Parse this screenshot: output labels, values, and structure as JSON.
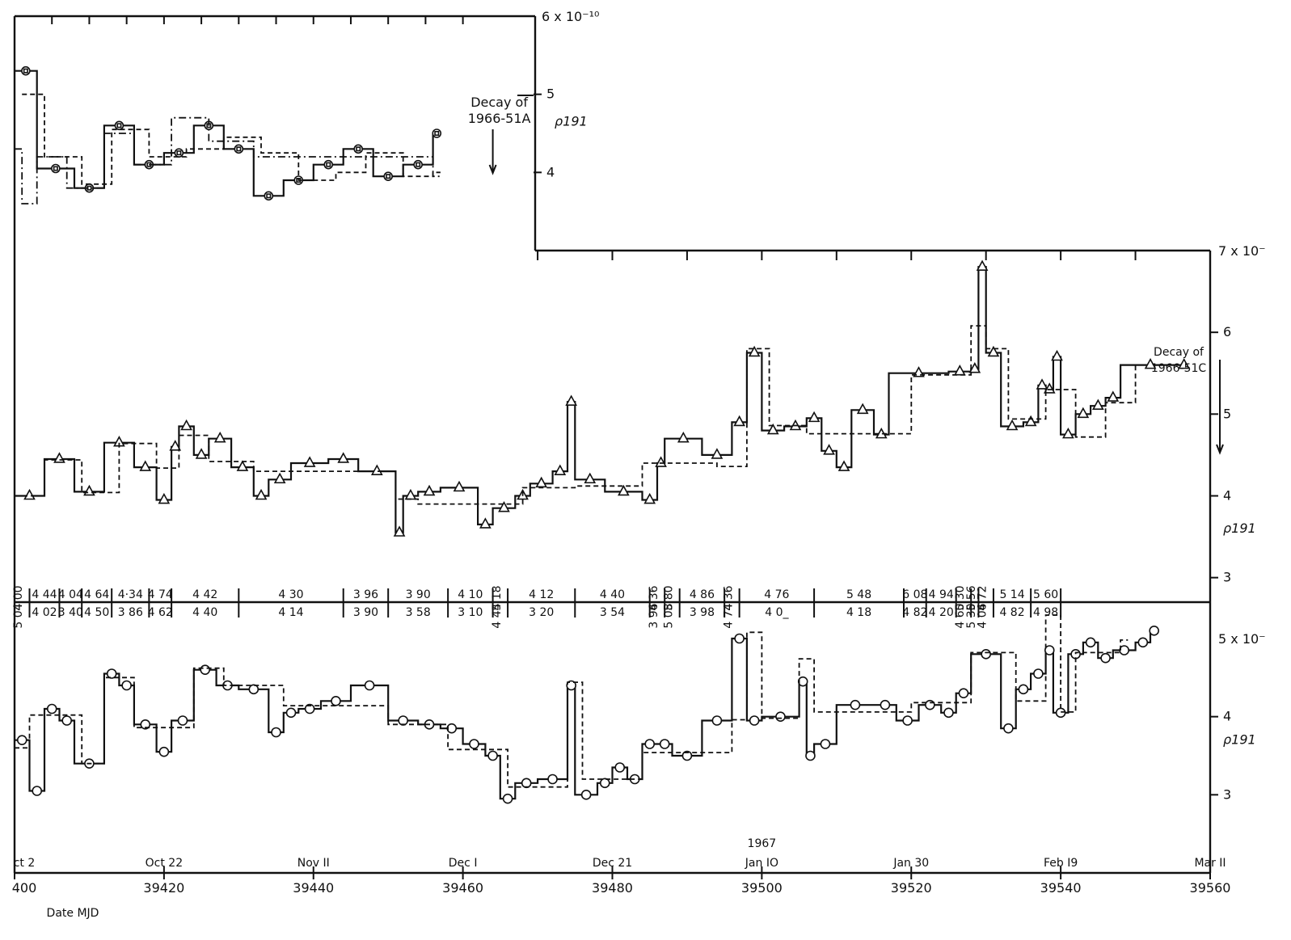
{
  "chart_data": [
    {
      "type": "line",
      "panel": "top",
      "axis_max_label": "6 x 10⁻¹⁰",
      "ylabel": "ρ191",
      "ylim": [
        3.0,
        6.0
      ],
      "yticks": [
        "5",
        "4"
      ],
      "yticks_values": [
        5,
        4
      ],
      "annotation": [
        "Decay of",
        "1966-51A"
      ],
      "annotation_x": 39464,
      "series": [
        {
          "style": "solid",
          "marker": "square",
          "x": [
            39400,
            39403,
            39408,
            39412,
            39416,
            39420,
            39424,
            39428,
            39432,
            39436,
            39440,
            39444,
            39448,
            39452,
            39456
          ],
          "values": [
            5.3,
            4.05,
            3.8,
            4.6,
            4.1,
            4.25,
            4.6,
            4.3,
            3.7,
            3.9,
            4.1,
            4.3,
            3.95,
            4.1,
            4.5
          ]
        },
        {
          "style": "dashed",
          "x": [
            39401,
            39404,
            39409,
            39413,
            39418,
            39423,
            39428,
            39433,
            39438,
            39443,
            39447,
            39452,
            39456
          ],
          "values": [
            5.0,
            4.2,
            3.85,
            4.55,
            4.2,
            4.3,
            4.45,
            4.25,
            3.9,
            4.0,
            4.25,
            3.95,
            4.0
          ]
        },
        {
          "style": "dash-dot",
          "x": [
            39400,
            39401,
            39403,
            39407,
            39412,
            39416,
            39421,
            39426,
            39432,
            39448,
            39456
          ],
          "values": [
            4.3,
            3.6,
            4.2,
            3.8,
            4.5,
            4.1,
            4.7,
            4.4,
            4.2,
            4.2,
            3.95
          ]
        }
      ]
    },
    {
      "type": "line",
      "panel": "middle",
      "axis_max_label": "7 x 10⁻",
      "ylabel": "ρ191",
      "ylim": [
        2.7,
        7.0
      ],
      "yticks": [
        "6",
        "5",
        "4",
        "3"
      ],
      "yticks_values": [
        6,
        5,
        4,
        3
      ],
      "annotation": [
        "Decay of",
        "1966-51C"
      ],
      "series": [
        {
          "style": "solid",
          "marker": "triangle",
          "x": [
            39400,
            39404,
            39408,
            39412,
            39416,
            39419,
            39421,
            39422,
            39424,
            39426,
            39429,
            39432,
            39434,
            39437,
            39442,
            39446,
            39451,
            39452,
            39454,
            39457,
            39462,
            39464,
            39467,
            39469,
            39472,
            39474,
            39475,
            39479,
            39484,
            39486,
            39487,
            39492,
            39496,
            39498,
            39500,
            39503,
            39506,
            39508,
            39510,
            39512,
            39515,
            39517,
            39525,
            39528,
            39529,
            39530,
            39532,
            39535,
            39537,
            39538,
            39539,
            39540,
            39542,
            39544,
            39546,
            39548,
            39556
          ],
          "values": [
            4.0,
            4.45,
            4.05,
            4.65,
            4.35,
            3.95,
            4.6,
            4.85,
            4.5,
            4.7,
            4.35,
            4.0,
            4.2,
            4.4,
            4.45,
            4.3,
            3.55,
            4.0,
            4.05,
            4.1,
            3.65,
            3.85,
            4.0,
            4.15,
            4.3,
            5.15,
            4.2,
            4.05,
            3.95,
            4.4,
            4.7,
            4.5,
            4.9,
            5.75,
            4.8,
            4.85,
            4.95,
            4.55,
            4.35,
            5.05,
            4.75,
            5.5,
            5.52,
            5.55,
            6.8,
            5.75,
            4.85,
            4.9,
            5.35,
            5.3,
            5.7,
            4.75,
            5.0,
            5.1,
            5.2,
            5.6,
            5.6
          ]
        },
        {
          "style": "dashed",
          "x": [
            39400,
            39404,
            39409,
            39414,
            39419,
            39422,
            39426,
            39432,
            39436,
            39441,
            39446,
            39451,
            39454,
            39458,
            39464,
            39468,
            39472,
            39475,
            39480,
            39484,
            39488,
            39494,
            39498,
            39501,
            39506,
            39510,
            39515,
            39520,
            39526,
            39528,
            39530,
            39533,
            39538,
            39542,
            39546,
            39550
          ],
          "values": [
            4.0,
            4.44,
            4.04,
            4.64,
            4.34,
            4.74,
            4.42,
            4.3,
            4.3,
            4.3,
            4.3,
            3.96,
            3.9,
            3.9,
            3.9,
            4.1,
            4.1,
            4.12,
            4.12,
            4.4,
            4.4,
            4.36,
            5.8,
            4.86,
            4.76,
            4.76,
            4.76,
            5.48,
            5.48,
            6.08,
            5.8,
            4.94,
            5.3,
            4.72,
            5.14,
            5.6
          ]
        }
      ]
    },
    {
      "type": "line",
      "panel": "bottom",
      "axis_max_label": "5 x 10⁻",
      "ylabel": "ρ191",
      "ylim": [
        2.0,
        5.0
      ],
      "yticks": [
        "4",
        "3"
      ],
      "yticks_values": [
        4,
        3
      ],
      "series": [
        {
          "style": "solid",
          "marker": "circle",
          "x": [
            39400,
            39402,
            39404,
            39406,
            39408,
            39412,
            39414,
            39416,
            39419,
            39421,
            39424,
            39427,
            39430,
            39434,
            39436,
            39438,
            39441,
            39445,
            39450,
            39454,
            39457,
            39460,
            39463,
            39465,
            39467,
            39470,
            39474,
            39475,
            39478,
            39480,
            39482,
            39484,
            39486,
            39488,
            39492,
            39496,
            39498,
            39500,
            39505,
            39506,
            39507,
            39510,
            39515,
            39518,
            39521,
            39524,
            39526,
            39528,
            39532,
            39534,
            39536,
            39538,
            39539,
            39541,
            39543,
            39545,
            39547,
            39550,
            39552
          ],
          "values": [
            3.7,
            3.05,
            4.1,
            3.95,
            3.4,
            4.55,
            4.4,
            3.9,
            3.55,
            3.95,
            4.6,
            4.4,
            4.35,
            3.8,
            4.05,
            4.1,
            4.2,
            4.4,
            3.95,
            3.9,
            3.85,
            3.65,
            3.5,
            2.95,
            3.15,
            3.2,
            4.4,
            3.0,
            3.15,
            3.35,
            3.2,
            3.65,
            3.65,
            3.5,
            3.95,
            5.0,
            3.95,
            4.0,
            4.45,
            3.5,
            3.65,
            4.15,
            4.15,
            3.95,
            4.15,
            4.05,
            4.3,
            4.8,
            3.85,
            4.35,
            4.55,
            4.85,
            4.05,
            4.8,
            4.95,
            4.75,
            4.85,
            4.95,
            5.1
          ]
        },
        {
          "style": "dashed",
          "x": [
            39400,
            39402,
            39404,
            39409,
            39412,
            39416,
            39422,
            39424,
            39428,
            39436,
            39442,
            39450,
            39454,
            39458,
            39462,
            39466,
            39468,
            39474,
            39476,
            39480,
            39484,
            39488,
            39496,
            39498,
            39500,
            39505,
            39507,
            39510,
            39515,
            39520,
            39526,
            39528,
            39534,
            39538,
            39540,
            39542,
            39544,
            39548
          ],
          "values": [
            3.6,
            4.02,
            4.02,
            3.4,
            4.5,
            3.86,
            3.86,
            4.62,
            4.4,
            4.14,
            4.14,
            3.9,
            3.9,
            3.58,
            3.58,
            3.1,
            3.1,
            4.44,
            3.2,
            3.2,
            3.54,
            3.54,
            3.96,
            5.08,
            3.98,
            4.74,
            4.06,
            4.06,
            4.06,
            4.18,
            4.18,
            4.82,
            4.2,
            5.3,
            4.06,
            4.82,
            4.82,
            4.98
          ]
        }
      ]
    }
  ],
  "table": {
    "upper_row": [
      {
        "x0": 39400,
        "x1": 39402,
        "text": "4 00"
      },
      {
        "x0": 39402,
        "x1": 39406,
        "text": "4 44"
      },
      {
        "x0": 39406,
        "x1": 39409,
        "text": "4 04"
      },
      {
        "x0": 39409,
        "x1": 39413,
        "text": "4 64"
      },
      {
        "x0": 39413,
        "x1": 39418,
        "text": "4·34"
      },
      {
        "x0": 39418,
        "x1": 39421,
        "text": "4 74"
      },
      {
        "x0": 39421,
        "x1": 39430,
        "text": "4 42"
      },
      {
        "x0": 39430,
        "x1": 39444,
        "text": "4 30"
      },
      {
        "x0": 39444,
        "x1": 39450,
        "text": "3 96"
      },
      {
        "x0": 39450,
        "x1": 39458,
        "text": "3 90"
      },
      {
        "x0": 39458,
        "x1": 39464,
        "text": "4 10"
      },
      {
        "x0": 39464,
        "x1": 39466,
        "text": "5 18"
      },
      {
        "x0": 39466,
        "x1": 39475,
        "text": "4 12"
      },
      {
        "x0": 39475,
        "x1": 39485,
        "text": "4 40"
      },
      {
        "x0": 39485,
        "x1": 39487,
        "text": "4 36"
      },
      {
        "x0": 39487,
        "x1": 39489,
        "text": "5 80"
      },
      {
        "x0": 39489,
        "x1": 39495,
        "text": "4 86"
      },
      {
        "x0": 39495,
        "x1": 39497,
        "text": "4 36"
      },
      {
        "x0": 39497,
        "x1": 39507,
        "text": "4 76"
      },
      {
        "x0": 39507,
        "x1": 39519,
        "text": "5 48"
      },
      {
        "x0": 39519,
        "x1": 39522,
        "text": "6 08"
      },
      {
        "x0": 39522,
        "x1": 39526,
        "text": "4 94"
      },
      {
        "x0": 39526,
        "x1": 39528,
        "text": "5 30"
      },
      {
        "x0": 39528,
        "x1": 39529,
        "text": "5 56"
      },
      {
        "x0": 39529,
        "x1": 39531,
        "text": "4 72"
      },
      {
        "x0": 39531,
        "x1": 39536,
        "text": "5 14"
      },
      {
        "x0": 39536,
        "x1": 39540,
        "text": "5 60"
      }
    ],
    "lower_row": [
      {
        "x0": 39400,
        "x1": 39402,
        "text": "5 04"
      },
      {
        "x0": 39402,
        "x1": 39406,
        "text": "4 02"
      },
      {
        "x0": 39406,
        "x1": 39409,
        "text": "3 40"
      },
      {
        "x0": 39409,
        "x1": 39413,
        "text": "4 50"
      },
      {
        "x0": 39413,
        "x1": 39418,
        "text": "3 86"
      },
      {
        "x0": 39418,
        "x1": 39421,
        "text": "4 62"
      },
      {
        "x0": 39421,
        "x1": 39430,
        "text": "4 40"
      },
      {
        "x0": 39430,
        "x1": 39444,
        "text": "4 14"
      },
      {
        "x0": 39444,
        "x1": 39450,
        "text": "3 90"
      },
      {
        "x0": 39450,
        "x1": 39458,
        "text": "3 58"
      },
      {
        "x0": 39458,
        "x1": 39464,
        "text": "3 10"
      },
      {
        "x0": 39464,
        "x1": 39466,
        "text": "4 44"
      },
      {
        "x0": 39466,
        "x1": 39475,
        "text": "3 20"
      },
      {
        "x0": 39475,
        "x1": 39485,
        "text": "3 54"
      },
      {
        "x0": 39485,
        "x1": 39487,
        "text": "3 96"
      },
      {
        "x0": 39487,
        "x1": 39489,
        "text": "5 08"
      },
      {
        "x0": 39489,
        "x1": 39495,
        "text": "3 98"
      },
      {
        "x0": 39495,
        "x1": 39497,
        "text": "4 74"
      },
      {
        "x0": 39497,
        "x1": 39507,
        "text": "4 0_"
      },
      {
        "x0": 39507,
        "x1": 39519,
        "text": "4 18"
      },
      {
        "x0": 39519,
        "x1": 39522,
        "text": "4 82"
      },
      {
        "x0": 39522,
        "x1": 39526,
        "text": "4 20"
      },
      {
        "x0": 39526,
        "x1": 39528,
        "text": "4 60"
      },
      {
        "x0": 39528,
        "x1": 39529,
        "text": "5 30"
      },
      {
        "x0": 39529,
        "x1": 39531,
        "text": "4 06"
      },
      {
        "x0": 39531,
        "x1": 39536,
        "text": "4 82"
      },
      {
        "x0": 39536,
        "x1": 39540,
        "text": "4 98"
      }
    ]
  },
  "x_axis": {
    "xlim": [
      39400,
      39560
    ],
    "xlabel": "Date MJD",
    "mjd_ticks": [
      39400,
      39420,
      39440,
      39460,
      39480,
      39500,
      39520,
      39540,
      39560
    ],
    "mjd_tick_labels": [
      "400",
      "39420",
      "39440",
      "39460",
      "39480",
      "39500",
      "39520",
      "39540",
      "39560"
    ],
    "date_labels": [
      "ct 2",
      "Oct 22",
      "Nov II",
      "Dec I",
      "Dec 21",
      "Jan IO",
      "Jan 30",
      "Feb I9",
      "Mar II"
    ],
    "year_label": "1967",
    "year_label_x": 39500
  }
}
